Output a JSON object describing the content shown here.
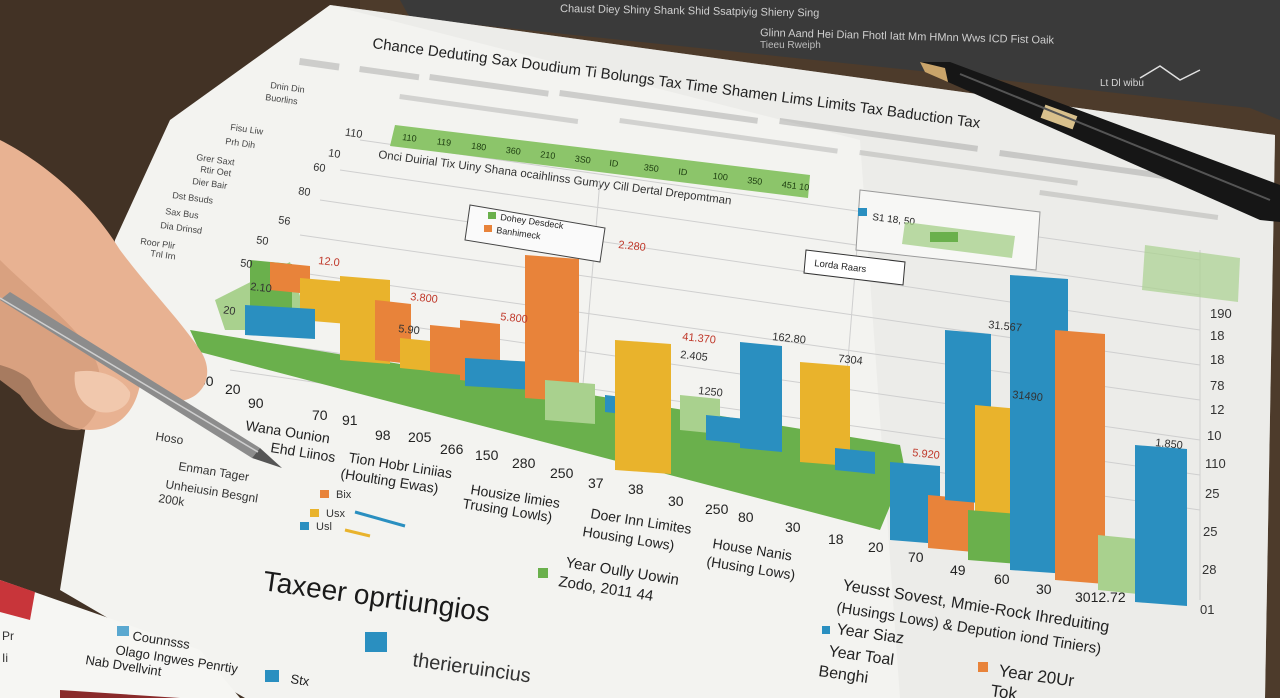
{
  "colors": {
    "desk": "#4a3a2c",
    "paper": "#f2f2ef",
    "green": "#6ab04c",
    "light_green": "#a9d18e",
    "orange": "#e8833a",
    "yellow": "#e9b32c",
    "blue": "#2a8fc0",
    "skin": "#e9b89a",
    "pen": "#1c1c1c"
  },
  "header": {
    "title": "Chance Deduting Sax Doudium Ti Bolungs Tax Time Shamen Lims Limits Tax Baduction Tax",
    "subtitle": "Onci Duirial Tix Uiny Shana ocaihlinss Gumyy Cill Dertal Drepomtman"
  },
  "back_document": {
    "line1": "Chaust Diey Shiny Shank Shid Ssatpiyig Shieny Sing",
    "line2": "Glinn Aand Hei Dian Fhotl Iatt Mm HMnn Wws ICD Fist Oaik",
    "line3": "Tieeu Rweiph",
    "corner": "Lt Dl wibu"
  },
  "green_band": {
    "values": [
      "110",
      "119",
      "180",
      "360",
      "210",
      "3S0",
      "ID",
      "350",
      "ID",
      "100",
      "350",
      "451 10"
    ]
  },
  "legend_box": {
    "items": [
      "Dohey Desdeck",
      "Banhimeck"
    ]
  },
  "side_box": {
    "value": "S1 18, 50",
    "label": "Lorda Raars"
  },
  "left_axis_labels": [
    "110",
    "10",
    "60",
    "80",
    "56",
    "50",
    "50",
    "20"
  ],
  "right_axis_labels": [
    "190",
    "18",
    "18",
    "78",
    "12",
    "10",
    "110",
    "25",
    "25",
    "28",
    "01"
  ],
  "left_margin_labels": [
    "Dnin Din",
    "Buorlins",
    "Fisu Liw",
    "Prh Dih",
    "Grer Saxt",
    "Rtir Oet",
    "Dier Bair",
    "Dst Bsuds",
    "Sax Bus",
    "Dia Drinsd",
    "Roor Plir",
    "Tnl Irn"
  ],
  "bar_labels": [
    "12.0",
    "2.10",
    "3.800",
    "5.90",
    "5.800",
    "2.280",
    "41.370",
    "2.405",
    "1250",
    "162.80",
    "7304",
    "5.920",
    "31.567",
    "31490",
    "1.850"
  ],
  "x_row_1": [
    "00",
    "20",
    "90",
    "70",
    "91",
    "98",
    "205",
    "266",
    "150",
    "280",
    "250",
    "37",
    "38",
    "30",
    "250",
    "80",
    "30",
    "18",
    "20",
    "70",
    "49",
    "60",
    "30",
    "3012.72"
  ],
  "x_category_labels": [
    "Wana Ounion",
    "Ehd Liinos",
    "Tion Hobr Liniias",
    "(Houlting Ewas)",
    "Housize limies",
    "Trusing Lowls)",
    "Doer Inn Limites",
    "Housing Lows)",
    "House Nanis",
    "(Husing Lows)"
  ],
  "pen_notes": [
    "Hoso",
    "Enman Tager",
    "Unheiusin Besgnl",
    "200k"
  ],
  "bottom_legend": {
    "items": [
      {
        "label": "Bix",
        "color": "#e8833a"
      },
      {
        "label": "Usx",
        "color": "#e9b32c"
      },
      {
        "label": "Usl",
        "color": "#2a8fc0"
      }
    ]
  },
  "year_notes": {
    "year_only": "Year Oully Uowin",
    "year_value": "Zodo, 2011 44",
    "sovest": "Yeusst Sovest, Mmie-Rock Ihreduiting",
    "sovest2": "(Husings Lows) & Depution iond Tiniers)",
    "year_star": "Year Siaz",
    "year_toal": "Year Toal",
    "benghi": "Benghi",
    "year_20ur": "Year 20Ur",
    "tokk": "Tok"
  },
  "footer": {
    "heading": "Taxeer oprtiungios",
    "subheading": "therieruincius"
  },
  "front_page": {
    "item1": "Counnsss",
    "item2": "Olago Ingwes Penrtiy",
    "item3": "Nab Dvellvint",
    "item4": "Stx"
  }
}
